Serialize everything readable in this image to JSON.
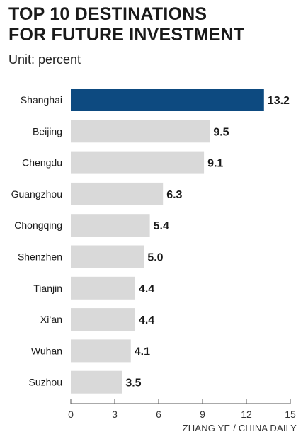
{
  "title_line1": "TOP 10 DESTINATIONS",
  "title_line2": "FOR FUTURE INVESTMENT",
  "subtitle": "Unit: percent",
  "credit": "ZHANG YE / CHINA DAILY",
  "colors": {
    "highlight_bar": "#0d4a80",
    "bar": "#d9d9d9",
    "text": "#1a1a1a",
    "axis": "#555555"
  },
  "chart_data": {
    "type": "bar",
    "orientation": "horizontal",
    "categories": [
      "Shanghai",
      "Beijing",
      "Chengdu",
      "Guangzhou",
      "Chongqing",
      "Shenzhen",
      "Tianjin",
      "Xi’an",
      "Wuhan",
      "Suzhou"
    ],
    "values": [
      13.2,
      9.5,
      9.1,
      6.3,
      5.4,
      5.0,
      4.4,
      4.4,
      4.1,
      3.5
    ],
    "value_labels": [
      "13.2",
      "9.5",
      "9.1",
      "6.3",
      "5.4",
      "5.0",
      "4.4",
      "4.4",
      "4.1",
      "3.5"
    ],
    "highlighted_category": "Shanghai",
    "xlim": [
      0,
      15
    ],
    "xticks": [
      0,
      3,
      6,
      9,
      12,
      15
    ],
    "grid": false
  }
}
